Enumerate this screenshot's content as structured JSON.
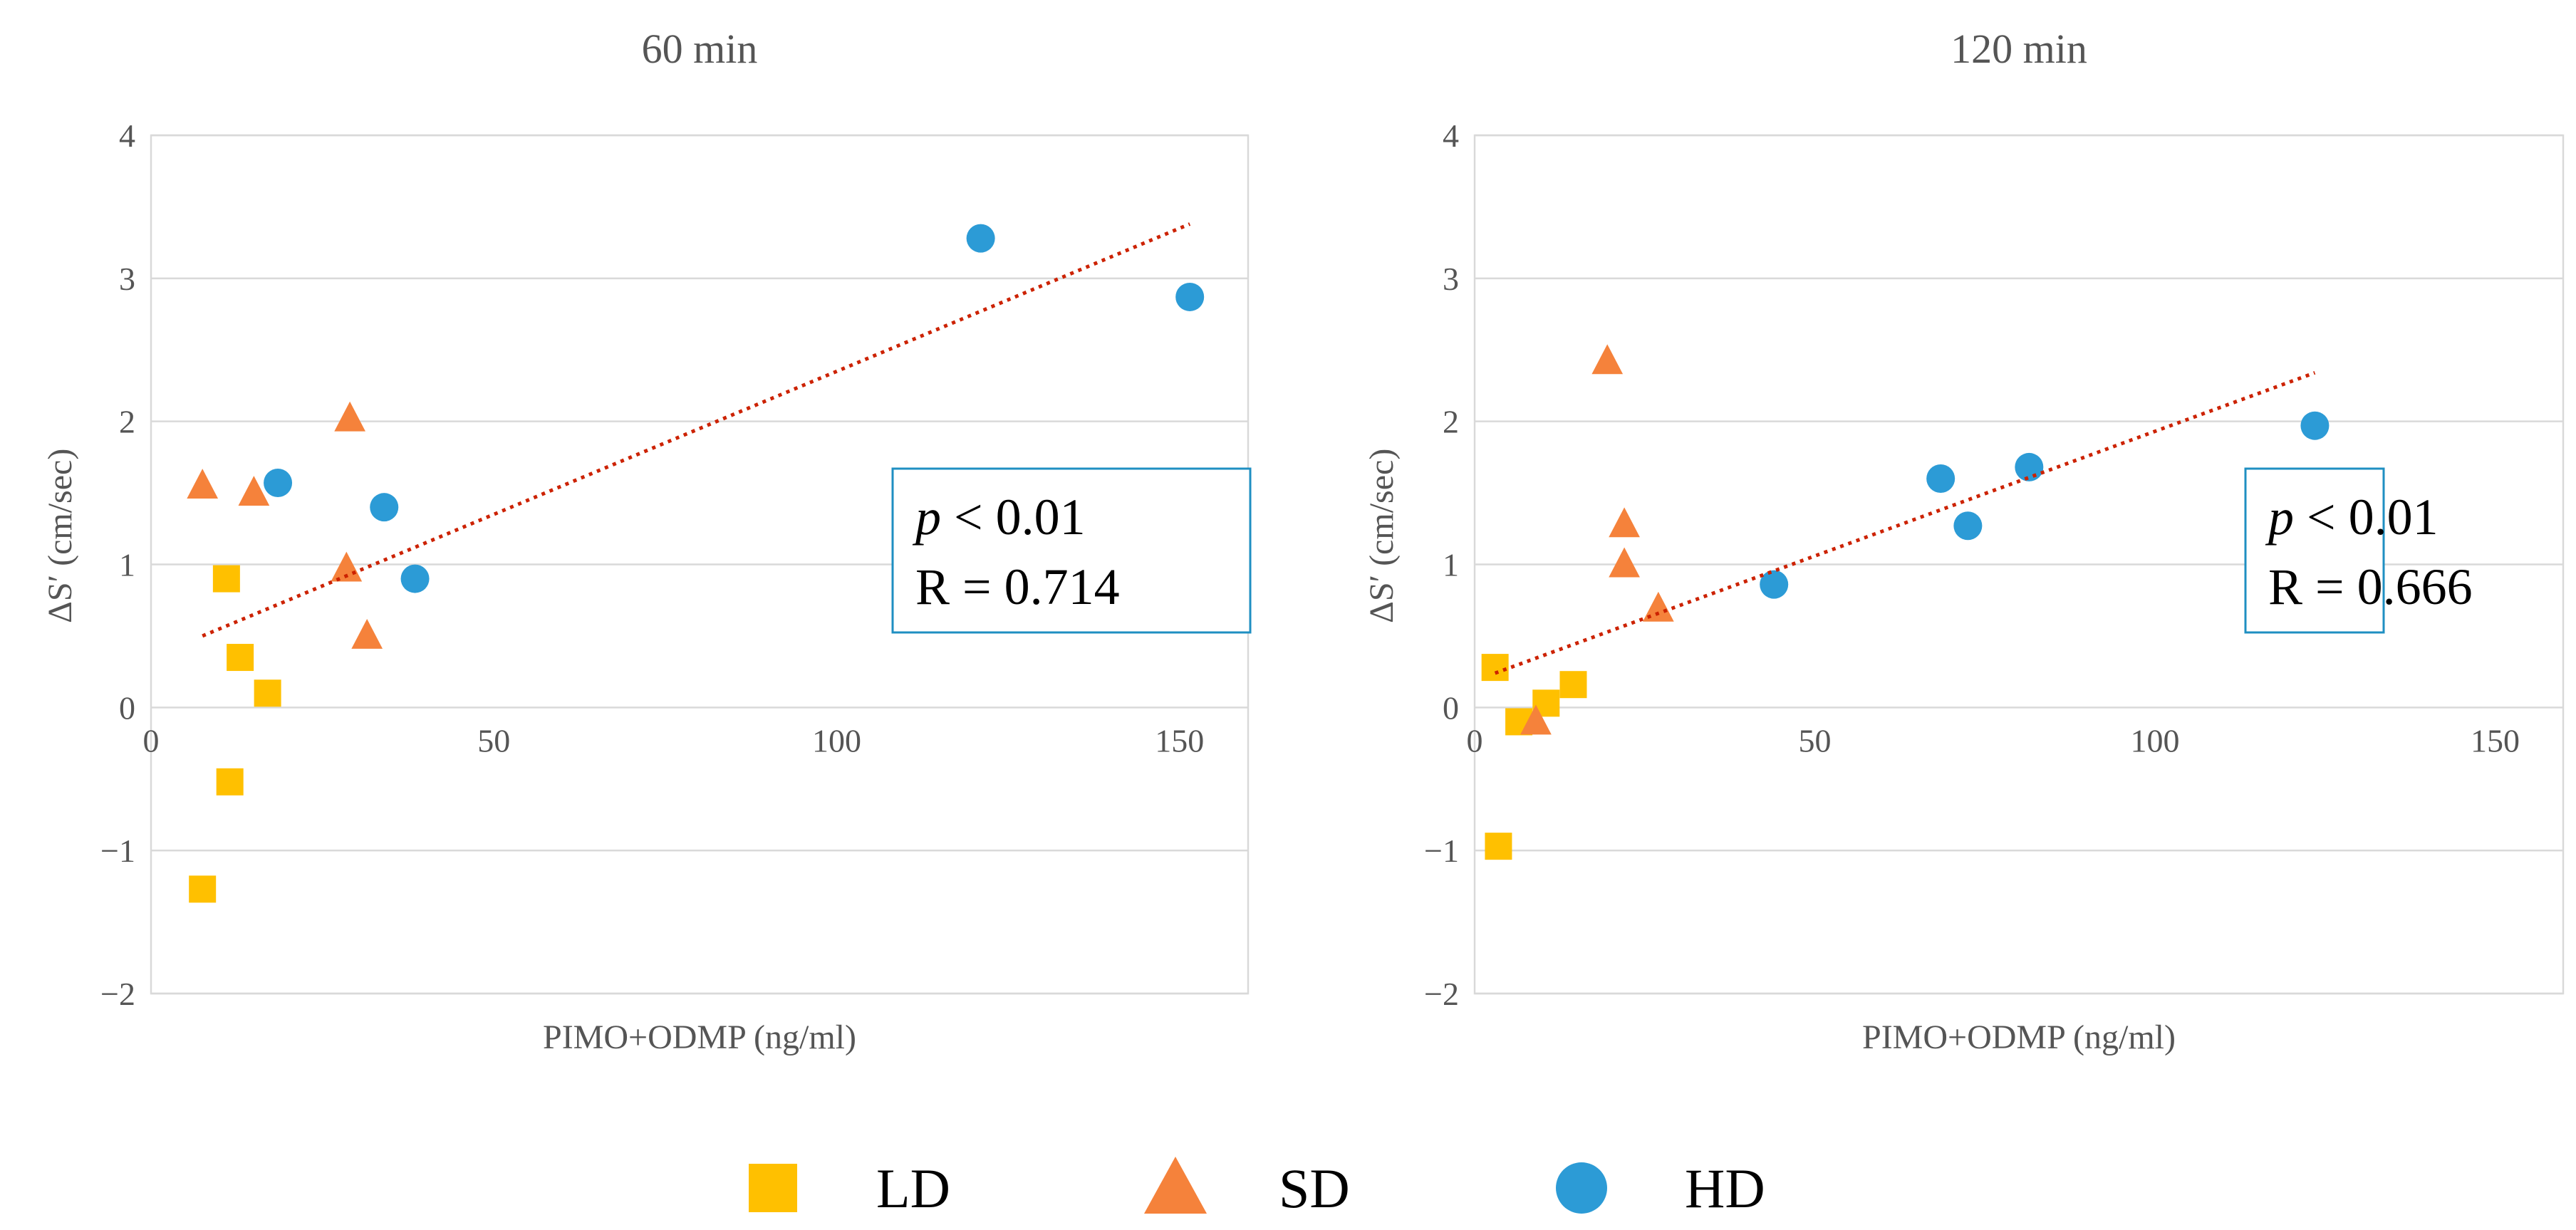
{
  "chart_data": [
    {
      "type": "scatter",
      "title": "60 min",
      "xlabel": "PIMO+ODMP (ng/ml)",
      "ylabel": "ΔS′ (cm/sec)",
      "xlim": [
        0,
        160
      ],
      "ylim": [
        -2,
        4
      ],
      "xticks": [
        0,
        50,
        100,
        150
      ],
      "xtick_labels": [
        "0",
        "50",
        "100",
        "150"
      ],
      "yticks": [
        -2,
        -1,
        0,
        1,
        2,
        3,
        4
      ],
      "ytick_labels": [
        "−2",
        "−1",
        "0",
        "1",
        "2",
        "3",
        "4"
      ],
      "series": [
        {
          "name": "LD",
          "marker": "square",
          "color": "#ffc000",
          "x": [
            11,
            13,
            17,
            11.5,
            7.5
          ],
          "y": [
            0.9,
            0.35,
            0.1,
            -0.52,
            -1.27
          ]
        },
        {
          "name": "SD",
          "marker": "triangle",
          "color": "#f5823b",
          "x": [
            7.5,
            15,
            29,
            28.5,
            31.5
          ],
          "y": [
            1.55,
            1.5,
            2.02,
            0.97,
            0.5
          ]
        },
        {
          "name": "HD",
          "marker": "circle",
          "color": "#2c9bd6",
          "x": [
            18.5,
            34,
            38.5,
            121,
            151.5
          ],
          "y": [
            1.57,
            1.4,
            0.9,
            3.28,
            2.87
          ]
        }
      ],
      "trendline": {
        "x": [
          7.5,
          151.5
        ],
        "y": [
          0.5,
          3.38
        ]
      },
      "annotation": {
        "p_symbol": "p",
        "p_text": " < 0.01",
        "r_text": "R = 0.714"
      }
    },
    {
      "type": "scatter",
      "title": "120 min",
      "xlabel": "PIMO+ODMP (ng/ml)",
      "ylabel": "ΔS′ (cm/sec)",
      "xlim": [
        0,
        160
      ],
      "ylim": [
        -2,
        4
      ],
      "xticks": [
        0,
        50,
        100,
        150
      ],
      "xtick_labels": [
        "0",
        "50",
        "100",
        "150"
      ],
      "yticks": [
        -2,
        -1,
        0,
        1,
        2,
        3,
        4
      ],
      "ytick_labels": [
        "−2",
        "−1",
        "0",
        "1",
        "2",
        "3",
        "4"
      ],
      "series": [
        {
          "name": "LD",
          "marker": "square",
          "color": "#ffc000",
          "x": [
            3,
            6.5,
            10.5,
            14.5,
            3.5
          ],
          "y": [
            0.28,
            -0.1,
            0.03,
            0.16,
            -0.97
          ]
        },
        {
          "name": "SD",
          "marker": "triangle",
          "color": "#f5823b",
          "x": [
            19.5,
            22,
            22,
            27,
            9
          ],
          "y": [
            2.42,
            1.28,
            1.0,
            0.69,
            -0.1
          ]
        },
        {
          "name": "HD",
          "marker": "circle",
          "color": "#2c9bd6",
          "x": [
            44,
            68.5,
            72.5,
            81.5,
            123.5
          ],
          "y": [
            0.86,
            1.6,
            1.27,
            1.68,
            1.97
          ]
        }
      ],
      "trendline": {
        "x": [
          3,
          123.5
        ],
        "y": [
          0.24,
          2.34
        ]
      },
      "annotation": {
        "p_symbol": "p",
        "p_text": " < 0.01",
        "r_text": "R = 0.666"
      }
    }
  ],
  "legend": [
    {
      "label": "LD",
      "marker": "square",
      "color": "#ffc000"
    },
    {
      "label": "SD",
      "marker": "triangle",
      "color": "#f5823b"
    },
    {
      "label": "HD",
      "marker": "circle",
      "color": "#2c9bd6"
    }
  ]
}
